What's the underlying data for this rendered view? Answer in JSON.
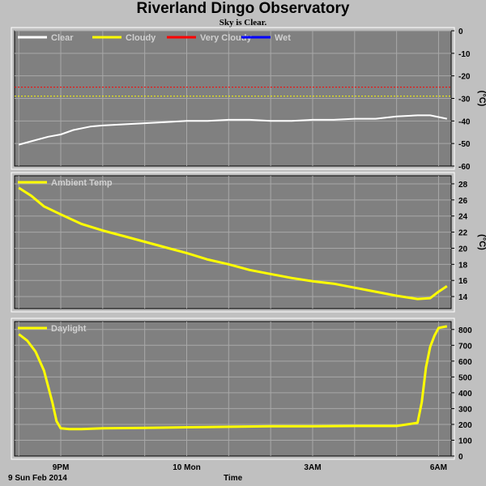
{
  "header": {
    "title": "Riverland Dingo Observatory",
    "subtitle": "Sky is Clear."
  },
  "footer": {
    "date_label": "9 Sun Feb 2014",
    "axis_title": "Time"
  },
  "colors": {
    "plot_bg": "#808080",
    "frame_bg": "#c0c0c0",
    "clear": "#ffffff",
    "cloudy": "#ffff00",
    "very_cloudy": "#ff0000",
    "wet": "#0000ff"
  },
  "chart_data": [
    {
      "type": "line",
      "ylabel": "(°C)",
      "ylim": [
        -60,
        0
      ],
      "yticks": [
        0,
        -10,
        -20,
        -30,
        -40,
        -50,
        -60
      ],
      "xlim": [
        19.9,
        30.3
      ],
      "xticks": [
        21,
        24,
        27,
        30
      ],
      "xtick_labels": [
        "9PM",
        "10 Mon",
        "3AM",
        "6AM"
      ],
      "grid": true,
      "legend_position": "top-left",
      "thresholds": [
        {
          "name": "Very Cloudy",
          "value": -25,
          "color": "#ff0000"
        },
        {
          "name": "Cloudy",
          "value": -29,
          "color": "#ffff00"
        }
      ],
      "series": [
        {
          "name": "Clear",
          "color": "#ffffff",
          "x": [
            20.0,
            20.3,
            20.7,
            21.0,
            21.3,
            21.7,
            22.0,
            22.5,
            23.0,
            23.5,
            24.0,
            24.5,
            25.0,
            25.5,
            26.0,
            26.5,
            27.0,
            27.5,
            28.0,
            28.5,
            29.0,
            29.5,
            29.8,
            30.2
          ],
          "y": [
            -50.5,
            -49,
            -47,
            -46,
            -44,
            -42.5,
            -42,
            -41.5,
            -41,
            -40.5,
            -40,
            -40,
            -39.5,
            -39.5,
            -40,
            -40,
            -39.5,
            -39.5,
            -39,
            -39,
            -38,
            -37.5,
            -37.5,
            -39
          ]
        },
        {
          "name": "Cloudy",
          "color": "#ffff00",
          "x": [],
          "y": []
        },
        {
          "name": "Very Cloudy",
          "color": "#ff0000",
          "x": [],
          "y": []
        },
        {
          "name": "Wet",
          "color": "#0000ff",
          "x": [],
          "y": []
        }
      ]
    },
    {
      "type": "line",
      "ylabel": "(°C)",
      "ylim": [
        12.5,
        29
      ],
      "yticks": [
        14,
        16,
        18,
        20,
        22,
        24,
        26,
        28
      ],
      "xlim": [
        19.9,
        30.3
      ],
      "xticks": [
        21,
        24,
        27,
        30
      ],
      "xtick_labels": [
        "9PM",
        "10 Mon",
        "3AM",
        "6AM"
      ],
      "grid": true,
      "legend_position": "top-left",
      "series": [
        {
          "name": "Ambient Temp",
          "color": "#ffff00",
          "x": [
            20.0,
            20.3,
            20.6,
            21.0,
            21.5,
            22.0,
            22.5,
            23.0,
            23.5,
            24.0,
            24.5,
            25.0,
            25.5,
            26.0,
            26.5,
            27.0,
            27.5,
            28.0,
            28.5,
            29.0,
            29.5,
            29.8,
            30.0,
            30.2
          ],
          "y": [
            27.5,
            26.5,
            25.2,
            24.2,
            23.0,
            22.2,
            21.5,
            20.8,
            20.1,
            19.4,
            18.6,
            18.0,
            17.3,
            16.8,
            16.3,
            15.9,
            15.6,
            15.1,
            14.6,
            14.1,
            13.7,
            13.8,
            14.6,
            15.3
          ]
        }
      ]
    },
    {
      "type": "line",
      "ylabel": "",
      "ylim": [
        0,
        850
      ],
      "yticks": [
        0,
        100,
        200,
        300,
        400,
        500,
        600,
        700,
        800
      ],
      "xlim": [
        19.9,
        30.3
      ],
      "xticks": [
        21,
        24,
        27,
        30
      ],
      "xtick_labels": [
        "9PM",
        "10 Mon",
        "3AM",
        "6AM"
      ],
      "grid": true,
      "legend_position": "top-left",
      "series": [
        {
          "name": "Daylight",
          "color": "#ffff00",
          "x": [
            20.0,
            20.2,
            20.4,
            20.6,
            20.8,
            20.9,
            21.0,
            21.2,
            21.5,
            22.0,
            23.0,
            24.0,
            25.0,
            26.0,
            27.0,
            28.0,
            29.0,
            29.5,
            29.6,
            29.7,
            29.8,
            29.9,
            30.0,
            30.2
          ],
          "y": [
            770,
            730,
            660,
            540,
            340,
            220,
            175,
            170,
            170,
            175,
            178,
            182,
            185,
            188,
            188,
            190,
            190,
            210,
            340,
            560,
            690,
            760,
            810,
            820
          ]
        }
      ]
    }
  ]
}
